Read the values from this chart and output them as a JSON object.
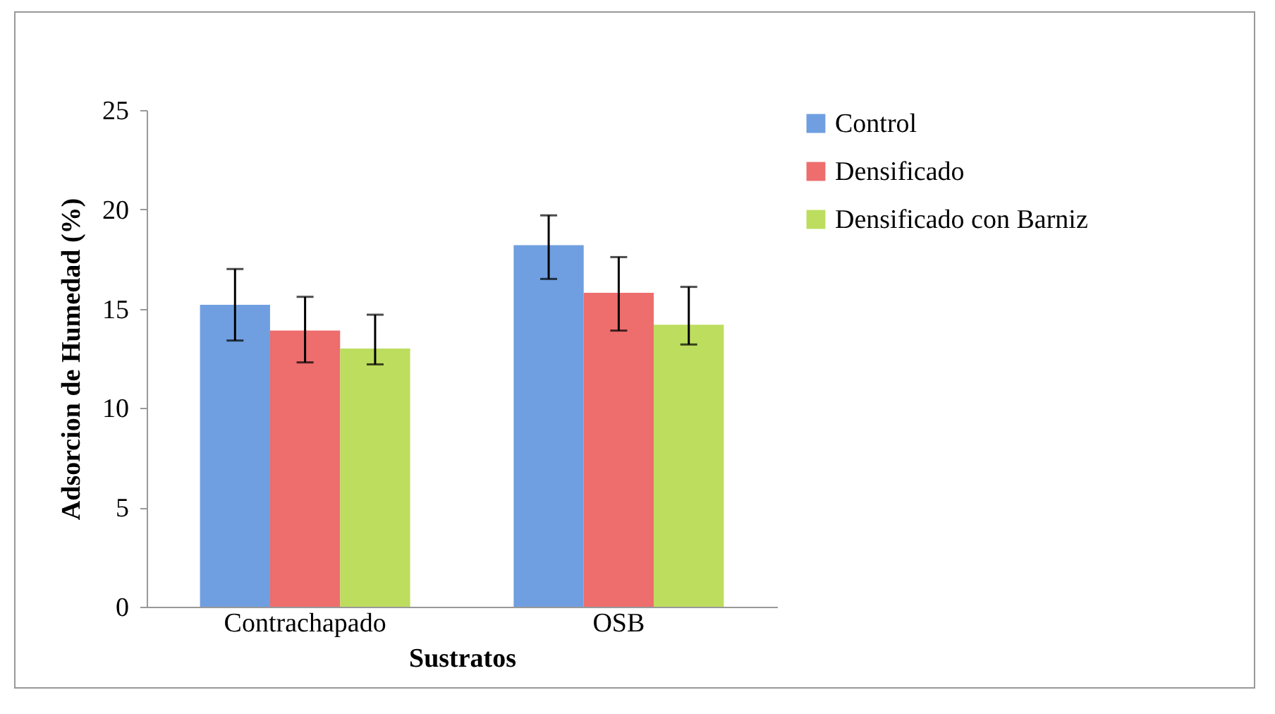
{
  "chart_data": {
    "type": "bar",
    "xlabel": "Sustratos",
    "ylabel": "Adsorcion de Humedad (%)",
    "categories": [
      "Contrachapado",
      "OSB"
    ],
    "series": [
      {
        "name": "Control",
        "color": "#6f9fe0",
        "values": [
          15.2,
          18.2
        ],
        "errors": [
          [
            13.4,
            17.0
          ],
          [
            16.5,
            19.7
          ]
        ]
      },
      {
        "name": "Densificado",
        "color": "#ee6d6d",
        "values": [
          13.9,
          15.8
        ],
        "errors": [
          [
            12.3,
            15.6
          ],
          [
            13.9,
            17.6
          ]
        ]
      },
      {
        "name": "Densificado con Barniz",
        "color": "#bddd5e",
        "values": [
          13.0,
          14.2
        ],
        "errors": [
          [
            12.2,
            14.7
          ],
          [
            13.2,
            16.1
          ]
        ]
      }
    ],
    "ylim": [
      0,
      25
    ],
    "yticks": [
      0,
      5,
      10,
      15,
      20,
      25
    ],
    "grid": false,
    "legend": "right"
  }
}
